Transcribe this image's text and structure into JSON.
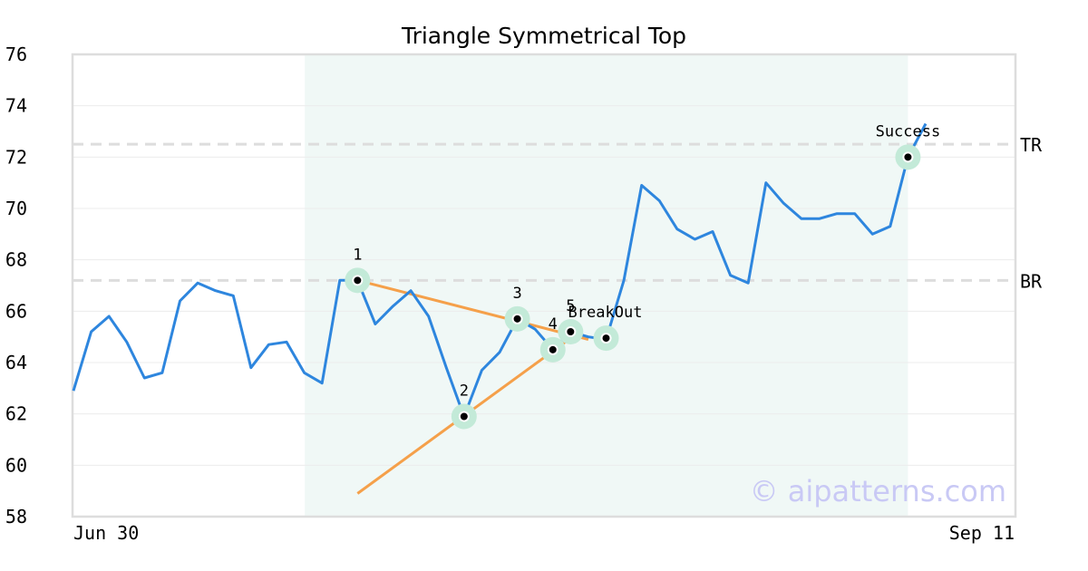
{
  "chart_data": {
    "type": "line",
    "title": "Triangle Symmetrical Top",
    "ylim": [
      58,
      76
    ],
    "yticks": [
      58,
      60,
      62,
      64,
      66,
      68,
      70,
      72,
      74,
      76
    ],
    "x_first_label": "Jun 30",
    "x_last_label": "Sep 11",
    "grid": true,
    "colors": {
      "price": "#2e86de",
      "trendline": "#f5a04a",
      "highlight": "#e3f3ee",
      "pivot_halo": "#c3ead8",
      "level": "#dddddd",
      "frame": "#dddddd"
    },
    "series": [
      {
        "values": [
          62.9,
          65.2,
          65.8,
          64.8,
          63.4,
          63.6,
          66.4,
          67.1,
          66.8,
          66.6,
          63.8,
          64.7,
          64.8,
          63.6,
          63.2,
          67.2,
          67.2,
          65.5,
          66.2,
          66.8,
          65.8,
          63.8,
          61.9,
          63.7,
          64.4,
          65.7,
          65.3,
          64.5,
          65.2,
          65.0,
          64.9,
          67.2,
          70.9,
          70.3,
          69.2,
          68.8,
          69.1,
          67.4,
          67.1,
          71.0,
          70.2,
          69.6,
          69.6,
          69.8,
          69.8,
          69.0,
          69.3,
          72.0,
          73.3
        ]
      }
    ],
    "highlight_range": [
      14,
      47
    ],
    "levels": [
      {
        "label": "TR",
        "value": 72.5
      },
      {
        "label": "BR",
        "value": 67.2
      }
    ],
    "trendlines": [
      {
        "from": [
          16,
          67.2
        ],
        "to": [
          29,
          64.9
        ]
      },
      {
        "from": [
          16,
          58.9
        ],
        "to": [
          28.5,
          65.2
        ]
      }
    ],
    "pivots": [
      {
        "label": "1",
        "index": 16,
        "value": 67.2
      },
      {
        "label": "2",
        "index": 22,
        "value": 61.9
      },
      {
        "label": "3",
        "index": 25,
        "value": 65.7
      },
      {
        "label": "4",
        "index": 27,
        "value": 64.5
      },
      {
        "label": "5",
        "index": 28,
        "value": 65.2
      },
      {
        "label": "BreakOut",
        "index": 30,
        "value": 64.95
      },
      {
        "label": "Success",
        "index": 47,
        "value": 72.0
      }
    ],
    "watermark": "© aipatterns.com"
  }
}
